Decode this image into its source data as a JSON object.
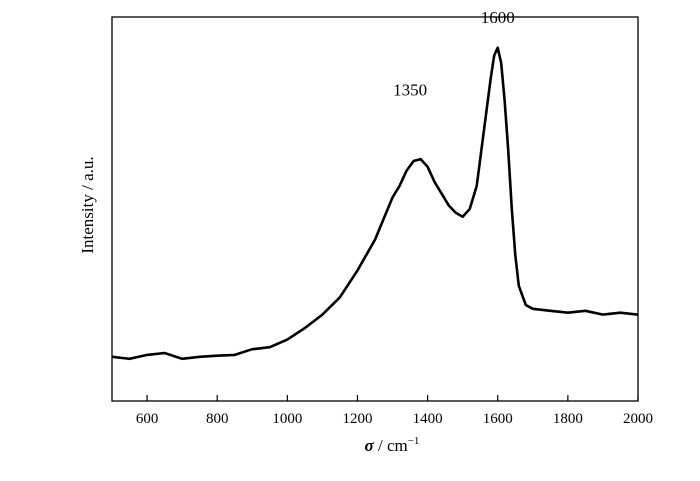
{
  "chart_data": {
    "type": "line",
    "title": "",
    "xlabel_symbol": "σ",
    "xlabel_unit": " / cm",
    "xlabel_exponent": "−1",
    "ylabel": "Intensity / a.u.",
    "xlim": [
      500,
      2000
    ],
    "ylim": [
      0,
      1
    ],
    "xticks": [
      600,
      800,
      1000,
      1200,
      1400,
      1600,
      1800,
      2000
    ],
    "yticks_shown": false,
    "grid": false,
    "legend": "none",
    "line_color": "#000000",
    "annotations": [
      {
        "text": "1350",
        "x": 1350,
        "y": 0.795
      },
      {
        "text": "1600",
        "x": 1600,
        "y": 0.985
      }
    ],
    "series": [
      {
        "x": [
          500,
          550,
          600,
          650,
          700,
          750,
          800,
          850,
          900,
          950,
          1000,
          1050,
          1100,
          1150,
          1200,
          1250,
          1300,
          1320,
          1340,
          1360,
          1380,
          1400,
          1420,
          1440,
          1460,
          1480,
          1500,
          1520,
          1540,
          1560,
          1580,
          1590,
          1600,
          1610,
          1620,
          1630,
          1640,
          1650,
          1660,
          1680,
          1700,
          1750,
          1800,
          1850,
          1900,
          1950,
          2000
        ],
        "y": [
          0.115,
          0.11,
          0.12,
          0.125,
          0.11,
          0.115,
          0.118,
          0.12,
          0.135,
          0.14,
          0.16,
          0.19,
          0.225,
          0.27,
          0.34,
          0.42,
          0.53,
          0.56,
          0.6,
          0.625,
          0.63,
          0.61,
          0.57,
          0.54,
          0.51,
          0.49,
          0.48,
          0.5,
          0.56,
          0.7,
          0.84,
          0.9,
          0.92,
          0.88,
          0.78,
          0.65,
          0.5,
          0.38,
          0.3,
          0.25,
          0.24,
          0.235,
          0.23,
          0.235,
          0.225,
          0.23,
          0.225
        ]
      }
    ]
  }
}
